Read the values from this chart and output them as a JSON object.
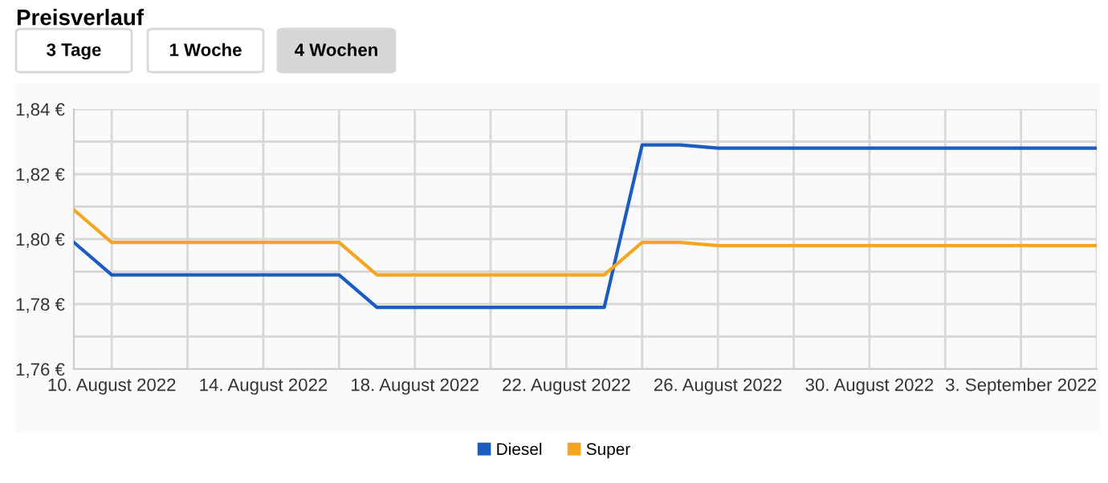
{
  "chart_data": {
    "type": "line",
    "title": "Preisverlauf",
    "annotations": [
      "3 Tage",
      "1 Woche",
      "4 Wochen"
    ],
    "x": [
      "2022-08-09",
      "2022-08-10",
      "2022-08-16",
      "2022-08-17",
      "2022-08-23",
      "2022-08-24",
      "2022-08-25",
      "2022-08-26",
      "2022-09-05"
    ],
    "series": [
      {
        "name": "Diesel",
        "color": "#1a5cc0",
        "values": [
          1.799,
          1.789,
          1.789,
          1.779,
          1.779,
          1.829,
          1.829,
          1.828,
          1.828
        ]
      },
      {
        "name": "Super",
        "color": "#f5a51f",
        "values": [
          1.809,
          1.799,
          1.799,
          1.789,
          1.789,
          1.799,
          1.799,
          1.798,
          1.798
        ]
      }
    ],
    "xlim": [
      "2022-08-09",
      "2022-09-05"
    ],
    "xticks": [
      {
        "value": "2022-08-10",
        "label": "10. August 2022"
      },
      {
        "value": "2022-08-12",
        "label": null
      },
      {
        "value": "2022-08-14",
        "label": "14. August 2022"
      },
      {
        "value": "2022-08-16",
        "label": null
      },
      {
        "value": "2022-08-18",
        "label": "18. August 2022"
      },
      {
        "value": "2022-08-20",
        "label": null
      },
      {
        "value": "2022-08-22",
        "label": "22. August 2022"
      },
      {
        "value": "2022-08-24",
        "label": null
      },
      {
        "value": "2022-08-26",
        "label": "26. August 2022"
      },
      {
        "value": "2022-08-28",
        "label": null
      },
      {
        "value": "2022-08-30",
        "label": "30. August 2022"
      },
      {
        "value": "2022-09-01",
        "label": null
      },
      {
        "value": "2022-09-03",
        "label": "3. September 2022"
      },
      {
        "value": "2022-09-05",
        "label": null
      }
    ],
    "ylim": [
      1.76,
      1.84
    ],
    "yticks": [
      {
        "value": 1.76,
        "label": "1,76 €"
      },
      {
        "value": 1.77,
        "label": null
      },
      {
        "value": 1.78,
        "label": "1,78 €"
      },
      {
        "value": 1.79,
        "label": null
      },
      {
        "value": 1.8,
        "label": "1,80 €"
      },
      {
        "value": 1.81,
        "label": null
      },
      {
        "value": 1.82,
        "label": "1,82 €"
      },
      {
        "value": 1.83,
        "label": null
      },
      {
        "value": 1.84,
        "label": "1,84 €"
      }
    ],
    "grid": true,
    "legend": "bottom",
    "marker": "none",
    "line_style": "solid"
  }
}
